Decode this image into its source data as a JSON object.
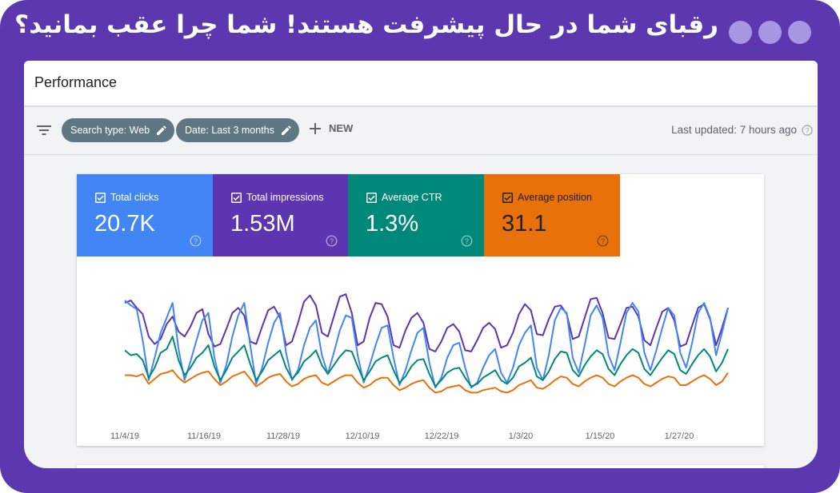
{
  "banner": {
    "title": "رقبای شما در حال پیشرفت هستند! شما چرا عقب بمانید؟"
  },
  "header": {
    "title": "Performance"
  },
  "filters": {
    "chips": [
      {
        "label": "Search type: Web"
      },
      {
        "label": "Date: Last 3 months"
      }
    ],
    "new_label": "NEW",
    "last_updated": "Last updated: 7 hours ago"
  },
  "metrics": [
    {
      "label": "Total clicks",
      "value": "20.7K",
      "color": "#4285f4",
      "checked": true
    },
    {
      "label": "Total impressions",
      "value": "1.53M",
      "color": "#5e35b1",
      "checked": true
    },
    {
      "label": "Average CTR",
      "value": "1.3%",
      "color": "#00897b",
      "checked": true
    },
    {
      "label": "Average position",
      "value": "31.1",
      "color": "#e8710a",
      "checked": true
    }
  ],
  "colors": {
    "frame": "#5b38b0",
    "chip": "#5f7782"
  },
  "chart_data": {
    "type": "line",
    "x_ticks": [
      "11/4/19",
      "11/16/19",
      "11/28/19",
      "12/10/19",
      "12/22/19",
      "1/3/20",
      "1/15/20",
      "1/27/20"
    ],
    "grid": false,
    "series": [
      {
        "color": "#5e35b1",
        "values": [
          82,
          84,
          78,
          73,
          55,
          49,
          53,
          65,
          71,
          59,
          55,
          63,
          74,
          77,
          57,
          47,
          49,
          61,
          74,
          78,
          72,
          51,
          49,
          63,
          76,
          79,
          70,
          48,
          51,
          66,
          83,
          88,
          80,
          58,
          55,
          71,
          87,
          89,
          74,
          48,
          51,
          70,
          82,
          81,
          71,
          48,
          46,
          60,
          70,
          74,
          66,
          45,
          43,
          51,
          62,
          65,
          59,
          44,
          43,
          52,
          62,
          66,
          61,
          46,
          48,
          58,
          73,
          81,
          76,
          57,
          56,
          69,
          79,
          80,
          73,
          53,
          55,
          70,
          85,
          86,
          74,
          54,
          53,
          65,
          78,
          79,
          71,
          52,
          48,
          62,
          75,
          78,
          68,
          47,
          49,
          64,
          78,
          81,
          69,
          48,
          62,
          78
        ]
      },
      {
        "color": "#4285f4",
        "values": [
          84,
          80,
          77,
          52,
          20,
          38,
          58,
          70,
          82,
          45,
          20,
          35,
          52,
          68,
          74,
          38,
          18,
          32,
          55,
          72,
          82,
          48,
          17,
          30,
          50,
          66,
          74,
          42,
          20,
          28,
          48,
          62,
          68,
          40,
          25,
          42,
          60,
          72,
          70,
          40,
          18,
          32,
          48,
          62,
          64,
          38,
          16,
          28,
          44,
          58,
          62,
          34,
          14,
          22,
          38,
          48,
          50,
          30,
          14,
          18,
          30,
          40,
          45,
          26,
          18,
          30,
          48,
          58,
          64,
          30,
          20,
          40,
          68,
          78,
          74,
          38,
          26,
          48,
          72,
          80,
          70,
          40,
          28,
          50,
          74,
          82,
          75,
          42,
          28,
          44,
          62,
          78,
          72,
          42,
          30,
          50,
          74,
          82,
          70,
          40,
          58,
          78
        ]
      },
      {
        "color": "#00897b",
        "values": [
          44,
          40,
          41,
          36,
          22,
          30,
          42,
          45,
          55,
          36,
          24,
          30,
          38,
          42,
          48,
          31,
          20,
          28,
          38,
          43,
          48,
          33,
          20,
          27,
          36,
          40,
          44,
          30,
          21,
          26,
          35,
          39,
          44,
          32,
          25,
          32,
          39,
          44,
          43,
          31,
          20,
          27,
          35,
          38,
          40,
          28,
          18,
          23,
          31,
          36,
          37,
          25,
          15,
          20,
          26,
          29,
          30,
          22,
          15,
          17,
          22,
          25,
          28,
          20,
          17,
          22,
          31,
          34,
          38,
          23,
          20,
          27,
          37,
          43,
          42,
          28,
          23,
          32,
          39,
          44,
          41,
          29,
          24,
          33,
          40,
          45,
          42,
          29,
          24,
          31,
          38,
          44,
          41,
          28,
          25,
          33,
          40,
          45,
          39,
          27,
          34,
          45
        ]
      },
      {
        "color": "#e8710a",
        "values": [
          24,
          24,
          23,
          25,
          17,
          21,
          25,
          26,
          28,
          22,
          18,
          21,
          24,
          26,
          27,
          21,
          16,
          19,
          23,
          25,
          27,
          21,
          15,
          18,
          22,
          24,
          25,
          19,
          15,
          17,
          21,
          23,
          24,
          18,
          16,
          19,
          22,
          24,
          24,
          18,
          14,
          16,
          20,
          22,
          22,
          16,
          12,
          14,
          17,
          19,
          20,
          14,
          10,
          11,
          14,
          15,
          16,
          12,
          10,
          10,
          12,
          13,
          14,
          11,
          10,
          12,
          16,
          18,
          20,
          14,
          13,
          16,
          20,
          23,
          22,
          17,
          15,
          19,
          22,
          24,
          22,
          17,
          15,
          19,
          22,
          24,
          22,
          17,
          15,
          18,
          21,
          23,
          22,
          16,
          16,
          19,
          22,
          24,
          21,
          16,
          19,
          26
        ]
      }
    ]
  }
}
